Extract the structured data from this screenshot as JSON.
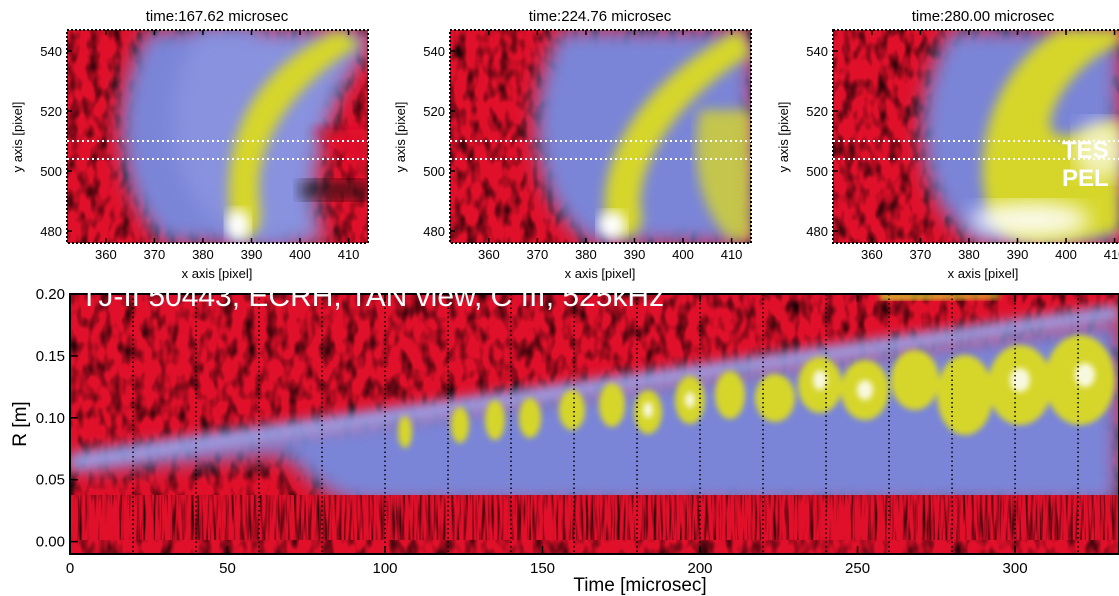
{
  "colors": {
    "low": "#e0102a",
    "dark": "#0a0a0a",
    "mid": "#7a85d8",
    "high": "#d6d62a",
    "peak": "#ffffff"
  },
  "chart_data": [
    {
      "type": "heatmap",
      "title": "time:167.62 microsec",
      "xlabel": "x axis [pixel]",
      "ylabel": "y axis [pixel]",
      "xlim": [
        352,
        414
      ],
      "ylim": [
        476,
        547
      ],
      "xticks": [
        "360",
        "370",
        "380",
        "390",
        "400",
        "410"
      ],
      "yticks": [
        "480",
        "500",
        "520",
        "540"
      ],
      "dotted_lines_y": [
        504,
        510
      ]
    },
    {
      "type": "heatmap",
      "title": "time:224.76 microsec",
      "xlabel": "x axis [pixel]",
      "ylabel": "y axis [pixel]",
      "xlim": [
        352,
        414
      ],
      "ylim": [
        476,
        547
      ],
      "xticks": [
        "360",
        "370",
        "380",
        "390",
        "400",
        "410"
      ],
      "yticks": [
        "480",
        "500",
        "520",
        "540"
      ],
      "dotted_lines_y": [
        504,
        510
      ]
    },
    {
      "type": "heatmap",
      "title": "time:280.00 microsec",
      "xlabel": "x axis [pixel]",
      "ylabel": "y axis [pixel]",
      "xlim": [
        352,
        414
      ],
      "ylim": [
        476,
        547
      ],
      "xticks": [
        "360",
        "370",
        "380",
        "390",
        "400",
        "410"
      ],
      "yticks": [
        "480",
        "500",
        "520",
        "540"
      ],
      "dotted_lines_y": [
        504,
        510
      ],
      "annotations": [
        "TES",
        "PEL"
      ]
    },
    {
      "type": "heatmap",
      "annotation": "TJ-II 50443, ECRH, TAN view, C III, 525kHz",
      "xlabel": "Time [microsec]",
      "ylabel": "R [m]",
      "xlim": [
        0,
        333
      ],
      "ylim": [
        -0.01,
        0.2
      ],
      "xticks": [
        "0",
        "50",
        "100",
        "150",
        "200",
        "250",
        "300"
      ],
      "yticks": [
        "0.00",
        "0.05",
        "0.10",
        "0.15",
        "0.20"
      ],
      "dotted_lines_x": [
        20,
        40,
        60,
        80,
        100,
        120,
        140,
        160,
        180,
        200,
        220,
        240,
        260,
        280,
        300,
        320
      ]
    }
  ]
}
